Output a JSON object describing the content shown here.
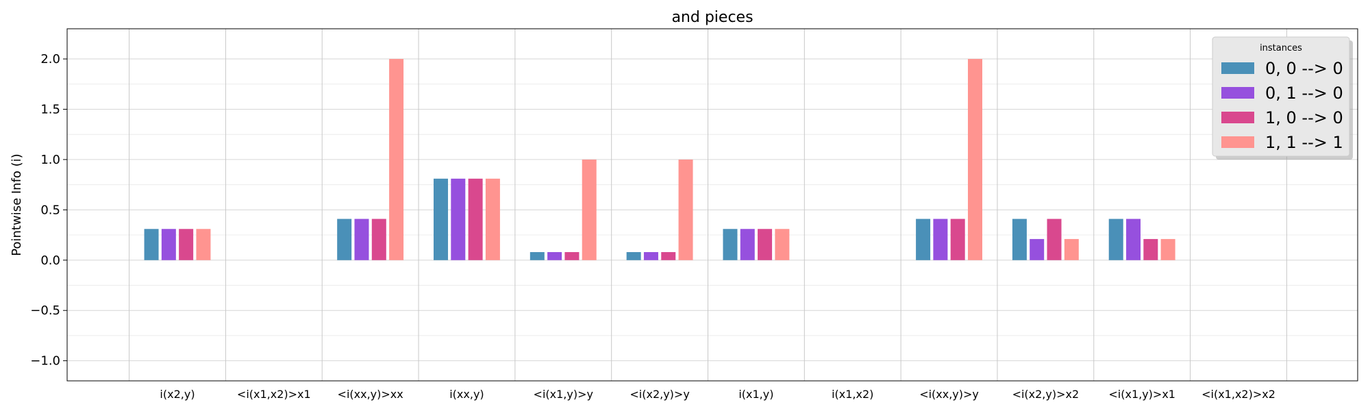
{
  "chart_data": {
    "type": "bar",
    "title": "and pieces",
    "xlabel": "",
    "ylabel": "Pointwise Info (i)",
    "ylim": [
      -1.2,
      2.3
    ],
    "yticks": [
      -1.0,
      -0.5,
      0.0,
      0.5,
      1.0,
      1.5,
      2.0
    ],
    "ytick_labels": [
      "−1.0",
      "−0.5",
      "0.0",
      "0.5",
      "1.0",
      "1.5",
      "2.0"
    ],
    "grid": true,
    "legend_placement": "top-right",
    "legend_title": "instances",
    "categories": [
      "i(x2,y)",
      "<i(x1,x2)>x1",
      "<i(xx,y)>xx",
      "i(xx,y)",
      "<i(x1,y)>y",
      "<i(x2,y)>y",
      "i(x1,y)",
      "i(x1,x2)",
      "<i(xx,y)>y",
      "<i(x2,y)>x2",
      "<i(x1,y)>x1",
      "<i(x1,x2)>x2"
    ],
    "series": [
      {
        "name": "0, 0 --> 0",
        "color": "#4a90b8",
        "values": [
          0.31,
          0,
          0.41,
          0.81,
          0.08,
          0.08,
          0.31,
          0,
          0.41,
          0.41,
          0.41,
          0
        ]
      },
      {
        "name": "0, 1 --> 0",
        "color": "#9650de",
        "values": [
          0.31,
          0,
          0.41,
          0.81,
          0.08,
          0.08,
          0.31,
          0,
          0.41,
          0.21,
          0.41,
          0
        ]
      },
      {
        "name": "1, 0 --> 0",
        "color": "#d9488e",
        "values": [
          0.31,
          0,
          0.41,
          0.81,
          0.08,
          0.08,
          0.31,
          0,
          0.41,
          0.41,
          0.21,
          0
        ]
      },
      {
        "name": "1, 1 --> 1",
        "color": "#ff9490",
        "values": [
          0.31,
          0,
          2.0,
          0.81,
          1.0,
          1.0,
          0.31,
          0,
          2.0,
          0.21,
          0.21,
          0
        ]
      }
    ]
  }
}
